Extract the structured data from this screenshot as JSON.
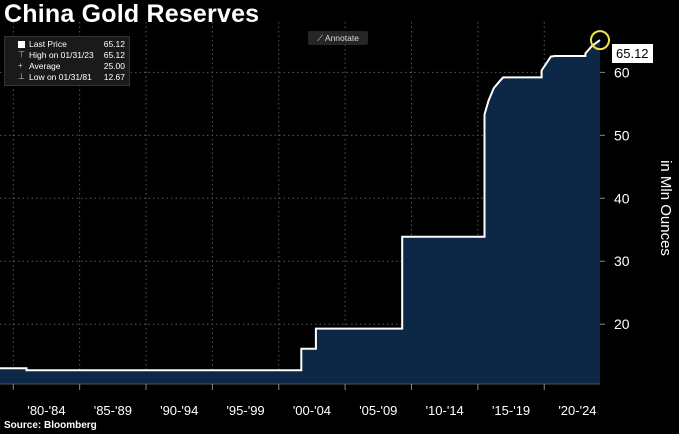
{
  "title": "China Gold Reserves",
  "source": "Source: Bloomberg",
  "annotate_label": "Annotate",
  "legend": {
    "last_price": {
      "label": "Last Price",
      "value": "65.12"
    },
    "high": {
      "label": "High on 01/31/23",
      "value": "65.12"
    },
    "average": {
      "label": "Average",
      "value": "25.00"
    },
    "low": {
      "label": "Low on 01/31/81",
      "value": "12.67"
    }
  },
  "last_value_label": "65.12",
  "colors": {
    "background": "#000000",
    "fill": "#0d2747",
    "line": "#ffffff",
    "highlight": "#f2e14a"
  },
  "chart_data": {
    "type": "area",
    "title": "China Gold Reserves",
    "ylabel": "in Mln Ounces",
    "ylim": [
      10.5,
      68
    ],
    "xlim": [
      1979.0,
      2024.2
    ],
    "yticks": [
      20,
      30,
      40,
      50,
      60
    ],
    "x_tick_labels": [
      "'80-'84",
      "'85-'89",
      "'90-'94",
      "'95-'99",
      "'00-'04",
      "'05-'09",
      "'10-'14",
      "'15-'19",
      "'20-'24"
    ],
    "x_tick_positions": [
      1980,
      1985,
      1990,
      1995,
      2000,
      2005,
      2010,
      2015,
      2020,
      2025
    ],
    "series": [
      {
        "x": [
          1979.0,
          1981.0,
          1981.0,
          2001.7,
          2001.7,
          2002.8,
          2002.8,
          2009.3,
          2009.3,
          2015.5,
          2015.5,
          2015.8,
          2016.2,
          2016.6,
          2016.9,
          2017.5,
          2019.8,
          2019.8,
          2020.5,
          2020.8,
          2023.1,
          2023.1,
          2023.6,
          2024.2
        ],
        "values": [
          13.0,
          13.0,
          12.67,
          12.67,
          16.1,
          16.1,
          19.3,
          19.3,
          33.9,
          33.9,
          53.3,
          55.5,
          57.5,
          58.5,
          59.2,
          59.2,
          59.2,
          60.3,
          62.5,
          62.6,
          62.6,
          63.0,
          64.2,
          65.12
        ]
      }
    ]
  }
}
